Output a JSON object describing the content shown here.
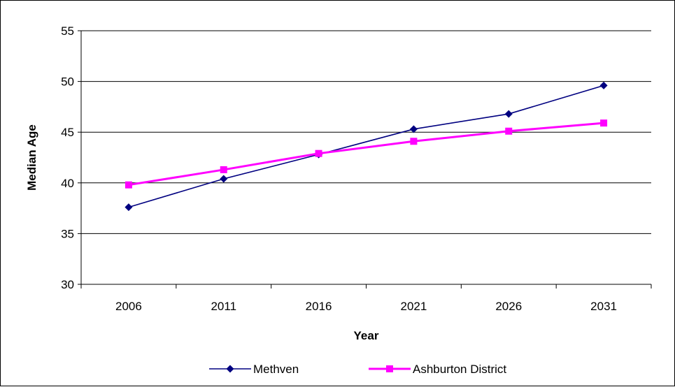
{
  "chart_data": {
    "type": "line",
    "categories": [
      "2006",
      "2011",
      "2016",
      "2021",
      "2026",
      "2031"
    ],
    "series": [
      {
        "name": "Methven",
        "values": [
          37.6,
          40.4,
          42.8,
          45.3,
          46.8,
          49.6
        ],
        "color": "#000080",
        "marker": "diamond"
      },
      {
        "name": "Ashburton District",
        "values": [
          39.8,
          41.3,
          42.9,
          44.1,
          45.1,
          45.9
        ],
        "color": "#FF00FF",
        "marker": "square"
      }
    ],
    "title": "",
    "xlabel": "Year",
    "ylabel": "Median Age",
    "ylim": [
      30,
      55
    ],
    "yticks": [
      30,
      35,
      40,
      45,
      50,
      55
    ],
    "grid": "horizontal",
    "legend_position": "bottom"
  }
}
